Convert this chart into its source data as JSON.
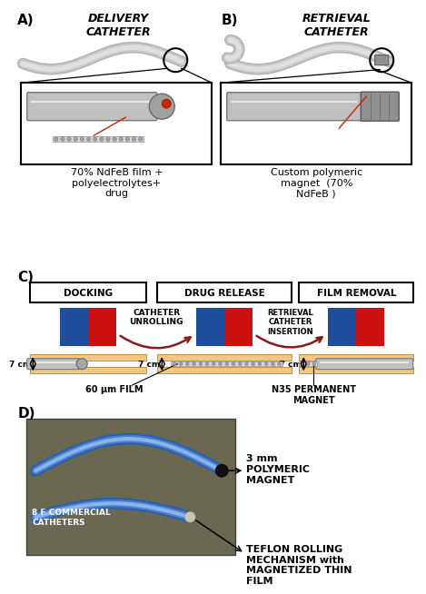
{
  "bg_color": "#ffffff",
  "label_A": "A)",
  "label_B": "B)",
  "label_C": "C)",
  "label_D": "D)",
  "delivery_title": "DELIVERY\nCATHETER",
  "retrieval_title": "RETRIEVAL\nCATHETER",
  "delivery_caption": "70% NdFeB film +\npolyelectrolytes+\ndrug",
  "retrieval_caption": "Custom polymeric\nmagnet  (70%\nNdFeB )",
  "docking_label": "DOCKING",
  "drug_release_label": "DRUG RELEASE",
  "film_removal_label": "FILM REMOVAL",
  "catheter_unrolling": "CATHETER\nUNROLLING",
  "retrieval_catheter_insertion": "RETRIEVAL\nCATHETER\nINSERTION",
  "seven_cm_1": "7 cm",
  "seven_cm_2": "7 cm",
  "gt7_cm": ">7 cm",
  "film_60": "60 μm FILM",
  "n35_magnet": "N35 PERMANENT\nMAGNET",
  "label_3mm": "3 mm\nPOLYMERIC\nMAGNET",
  "label_8f": "8 F COMMERCIAL\nCATHETERS",
  "label_teflon": "TEFLON ROLLING\nMECHANISM with\nMAGNETIZED THIN\nFILM",
  "blue_color": "#1f4e9c",
  "red_color": "#cc1111",
  "peach_color": "#f0c882",
  "arrow_color": "#8b1a1a",
  "text_color": "#000000",
  "gray_tube": "#c0c0c0",
  "gray_tube_dark": "#888888",
  "gray_tube_light": "#e0e0e0"
}
